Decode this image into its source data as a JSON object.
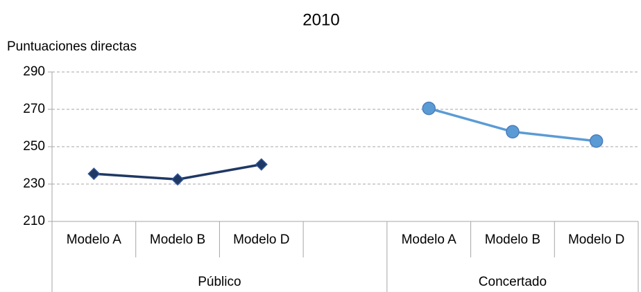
{
  "chart_data": {
    "type": "line",
    "title": "2010",
    "y_label": "Puntuaciones directas",
    "categories": [
      "Modelo A",
      "Modelo B",
      "Modelo D",
      null,
      "Modelo A",
      "Modelo B",
      "Modelo D"
    ],
    "series": [
      {
        "name": "Público",
        "color": "#1f3864",
        "marker": "diamond",
        "values": [
          235.5,
          232.5,
          240.5,
          null,
          null,
          null,
          null
        ]
      },
      {
        "name": "Concertado",
        "color": "#5b9bd5",
        "marker": "circle",
        "values": [
          null,
          null,
          null,
          null,
          270.5,
          258,
          253
        ]
      }
    ],
    "ylim": [
      210,
      290
    ],
    "yticks": [
      210,
      230,
      250,
      270,
      290
    ],
    "grid": true
  }
}
